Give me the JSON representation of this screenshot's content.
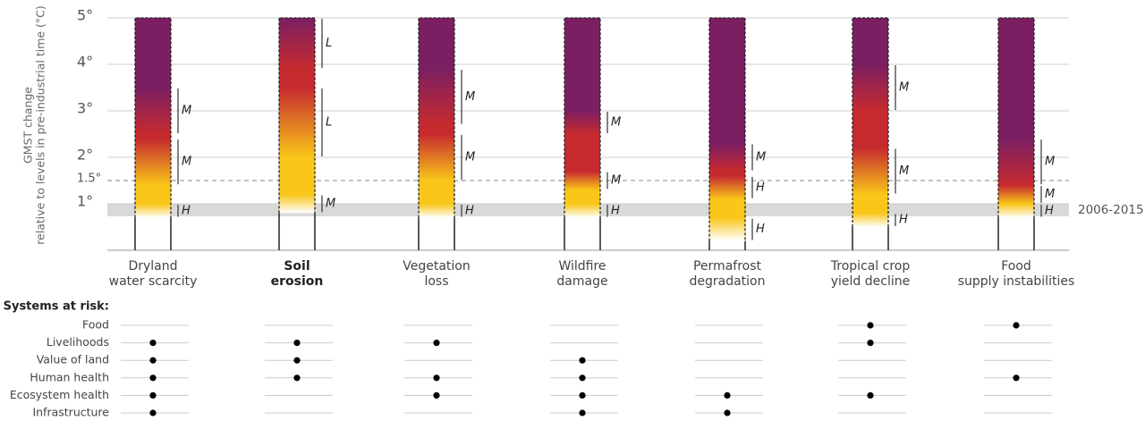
{
  "chart_data": {
    "type": "ember",
    "ylabel": [
      "GMST change",
      "relative to levels in pre-industrial time (°C)"
    ],
    "ylim": [
      0,
      5
    ],
    "yticks": [
      {
        "value": 1,
        "label": "1°"
      },
      {
        "value": 1.5,
        "label": "1.5°"
      },
      {
        "value": 2,
        "label": "2°"
      },
      {
        "value": 3,
        "label": "3°"
      },
      {
        "value": 4,
        "label": "4°"
      },
      {
        "value": 5,
        "label": "5°"
      }
    ],
    "dashed_ticks": [
      1.5
    ],
    "reference_band": {
      "from": 0.73,
      "to": 1.0,
      "label": "2006-2015"
    },
    "level_colors": [
      "#ffffff",
      "#f9c619",
      "#c62a2f",
      "#7b1f62"
    ],
    "emphasized_category": 1,
    "categories": [
      [
        "Dryland",
        "water scarcity"
      ],
      [
        "Soil",
        "erosion"
      ],
      [
        "Vegetation",
        "loss"
      ],
      [
        "Wildfire",
        "damage"
      ],
      [
        "Permafrost",
        "degradation"
      ],
      [
        "Tropical crop",
        "yield decline"
      ],
      [
        "Food",
        "supply instabilities"
      ]
    ],
    "transitions": [
      [
        {
          "from": 0.7,
          "to": 1.0,
          "confidence": "H"
        },
        {
          "from": 1.4,
          "to": 2.4,
          "confidence": "M"
        },
        {
          "from": 2.5,
          "to": 3.5,
          "confidence": "M"
        }
      ],
      [
        {
          "from": 0.8,
          "to": 1.2,
          "confidence": "M"
        },
        {
          "from": 2.0,
          "to": 3.5,
          "confidence": "L"
        },
        {
          "from": 3.9,
          "to": 5.0,
          "confidence": "L"
        }
      ],
      [
        {
          "from": 0.7,
          "to": 1.0,
          "confidence": "H"
        },
        {
          "from": 1.5,
          "to": 2.5,
          "confidence": "M"
        },
        {
          "from": 2.7,
          "to": 3.9,
          "confidence": "M"
        }
      ],
      [
        {
          "from": 0.7,
          "to": 1.0,
          "confidence": "H"
        },
        {
          "from": 1.3,
          "to": 1.7,
          "confidence": "M"
        },
        {
          "from": 2.5,
          "to": 3.0,
          "confidence": "M"
        }
      ],
      [
        {
          "from": 0.2,
          "to": 0.7,
          "confidence": "H"
        },
        {
          "from": 1.1,
          "to": 1.6,
          "confidence": "H"
        },
        {
          "from": 1.7,
          "to": 2.3,
          "confidence": "M"
        }
      ],
      [
        {
          "from": 0.5,
          "to": 0.8,
          "confidence": "H"
        },
        {
          "from": 1.2,
          "to": 2.2,
          "confidence": "M"
        },
        {
          "from": 3.0,
          "to": 4.0,
          "confidence": "M"
        }
      ],
      [
        {
          "from": 0.7,
          "to": 1.0,
          "confidence": "H"
        },
        {
          "from": 1.0,
          "to": 1.4,
          "confidence": "M"
        },
        {
          "from": 1.4,
          "to": 2.4,
          "confidence": "M"
        }
      ]
    ],
    "systems_title": "Systems at risk:",
    "systems": [
      "Food",
      "Livelihoods",
      "Value of land",
      "Human health",
      "Ecosystem health",
      "Infrastructure"
    ],
    "at_risk": [
      [
        false,
        true,
        true,
        true,
        true,
        true
      ],
      [
        false,
        true,
        true,
        true,
        false,
        false
      ],
      [
        false,
        true,
        false,
        true,
        true,
        false
      ],
      [
        false,
        false,
        true,
        true,
        true,
        true
      ],
      [
        false,
        false,
        false,
        false,
        true,
        true
      ],
      [
        true,
        true,
        false,
        false,
        true,
        false
      ],
      [
        true,
        false,
        false,
        true,
        false,
        false
      ]
    ]
  }
}
